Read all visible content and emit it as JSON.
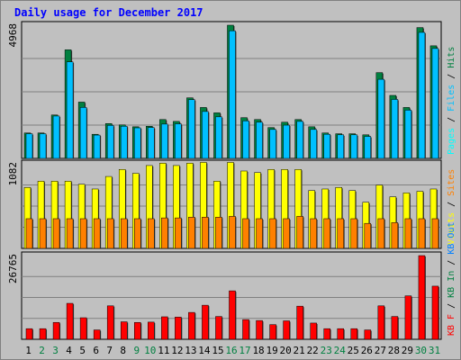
{
  "title": "Daily usage for December 2017",
  "chart_data": {
    "type": "bar",
    "categories": [
      "1",
      "2",
      "3",
      "4",
      "5",
      "6",
      "7",
      "8",
      "9",
      "10",
      "11",
      "12",
      "13",
      "14",
      "15",
      "16",
      "17",
      "18",
      "19",
      "20",
      "21",
      "22",
      "23",
      "24",
      "25",
      "26",
      "27",
      "28",
      "29",
      "30",
      "31"
    ],
    "weekend_days": [
      "2",
      "3",
      "9",
      "10",
      "16",
      "17",
      "23",
      "24",
      "30",
      "31"
    ],
    "panels": [
      {
        "max_label": "4968",
        "max_value": 4968,
        "axis_labels": [
          "Pages",
          "Files",
          "Hits"
        ],
        "series": [
          {
            "name": "Hits",
            "color": "#008040",
            "values": [
              950,
              950,
              1620,
              4050,
              2100,
              900,
              1300,
              1250,
              1180,
              1200,
              1450,
              1380,
              2260,
              1900,
              1700,
              4968,
              1520,
              1450,
              1150,
              1350,
              1450,
              1180,
              950,
              920,
              920,
              880,
              3200,
              2350,
              1900,
              4880,
              4200
            ]
          },
          {
            "name": "Files",
            "color": "#00c0ff",
            "values": [
              920,
              920,
              1580,
              3600,
              1900,
              870,
              1230,
              1200,
              1140,
              1150,
              1280,
              1290,
              2190,
              1750,
              1550,
              4760,
              1400,
              1350,
              1080,
              1240,
              1380,
              1080,
              900,
              880,
              880,
              820,
              2950,
              2200,
              1800,
              4700,
              4100
            ]
          },
          {
            "name": "Pages",
            "color": "#00ffff",
            "values": [
              0,
              0,
              0,
              0,
              0,
              0,
              0,
              0,
              0,
              0,
              0,
              0,
              0,
              0,
              0,
              0,
              0,
              0,
              0,
              0,
              0,
              0,
              0,
              0,
              0,
              0,
              0,
              0,
              0,
              0,
              0
            ]
          }
        ]
      },
      {
        "max_label": "1082",
        "max_value": 1082,
        "axis_labels": [
          "Visits",
          "Sites"
        ],
        "series": [
          {
            "name": "Visits",
            "color": "#ffff00",
            "values": [
              780,
              860,
              860,
              860,
              820,
              760,
              920,
              1010,
              960,
              1060,
              1090,
              1060,
              1090,
              1100,
              860,
              1100,
              990,
              970,
              1010,
              1010,
              1010,
              740,
              760,
              780,
              740,
              590,
              810,
              660,
              710,
              730,
              760
            ]
          },
          {
            "name": "Sites",
            "color": "#ff8000",
            "values": [
              380,
              380,
              380,
              380,
              380,
              380,
              380,
              380,
              380,
              380,
              390,
              390,
              400,
              400,
              400,
              410,
              380,
              380,
              380,
              380,
              410,
              380,
              380,
              380,
              380,
              320,
              380,
              330,
              380,
              380,
              380
            ]
          }
        ]
      },
      {
        "max_label": "26765",
        "max_value": 26765,
        "axis_labels": [
          "KB F",
          "KB In",
          "KB Out"
        ],
        "series": [
          {
            "name": "KB F",
            "color": "#ff0000",
            "values": [
              3400,
              3400,
              5400,
              11500,
              6900,
              3000,
              10700,
              5600,
              5400,
              5500,
              7200,
              7100,
              8600,
              10900,
              7300,
              15500,
              6300,
              6000,
              4700,
              5900,
              10600,
              5200,
              3400,
              3400,
              3400,
              3000,
              10700,
              7300,
              13900,
              26765,
              17000
            ]
          },
          {
            "name": "KB In",
            "color": "#008040",
            "values": [
              0,
              0,
              0,
              0,
              0,
              0,
              0,
              0,
              0,
              0,
              0,
              0,
              0,
              0,
              0,
              0,
              0,
              0,
              0,
              0,
              0,
              0,
              0,
              0,
              0,
              0,
              0,
              0,
              0,
              0,
              0
            ]
          },
          {
            "name": "KB Out",
            "color": "#0080ff",
            "values": [
              0,
              0,
              0,
              0,
              0,
              0,
              0,
              0,
              0,
              0,
              0,
              0,
              0,
              0,
              0,
              0,
              0,
              0,
              0,
              0,
              0,
              0,
              0,
              0,
              0,
              0,
              0,
              0,
              0,
              0,
              0
            ]
          }
        ]
      }
    ]
  }
}
